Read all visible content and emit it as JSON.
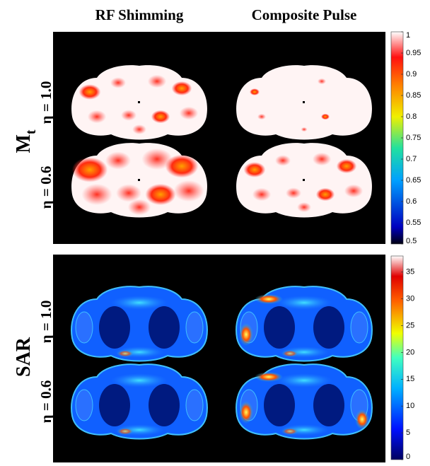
{
  "columns": [
    "RF Shimming",
    "Composite Pulse"
  ],
  "groups": [
    {
      "label": "M",
      "subscript": "t",
      "rows": [
        "η = 1.0",
        "η = 0.6"
      ]
    },
    {
      "label": "SAR",
      "rows": [
        "η = 1.0",
        "η = 0.6"
      ]
    }
  ],
  "colorbars": [
    {
      "lim": [
        0.5,
        1
      ],
      "ticks": [
        1,
        0.95,
        0.9,
        0.85,
        0.8,
        0.75,
        0.7,
        0.65,
        0.6,
        0.55,
        0.5
      ]
    },
    {
      "lim": [
        0,
        38
      ],
      "ticks": [
        35,
        30,
        25,
        20,
        15,
        10,
        5,
        0
      ]
    }
  ]
}
